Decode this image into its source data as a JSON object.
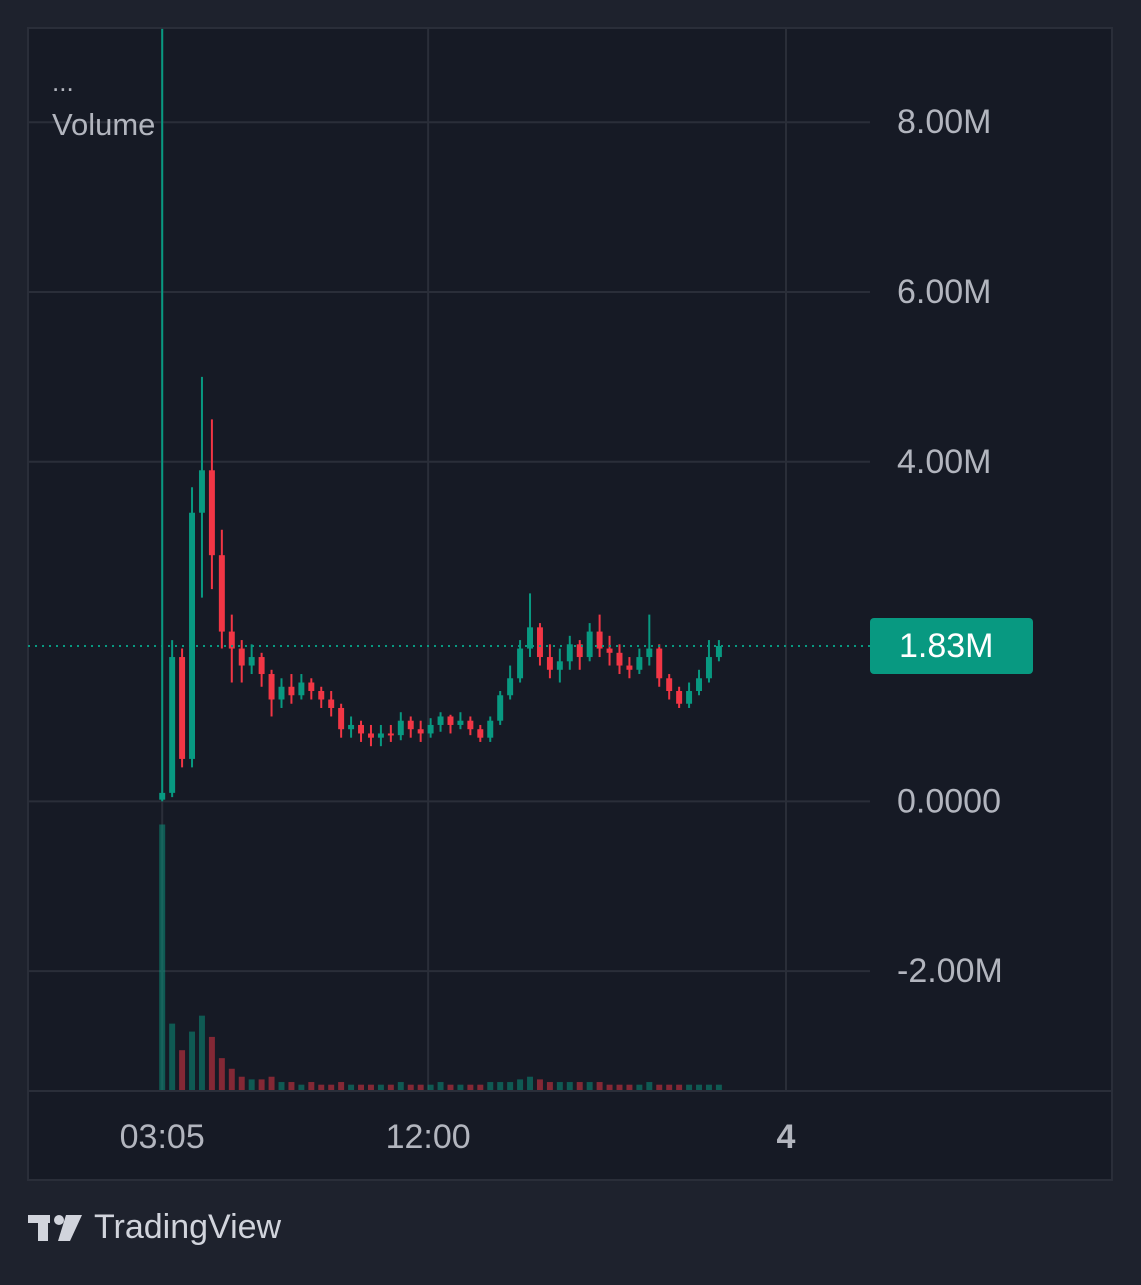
{
  "chart_data": {
    "type": "candlestick",
    "legend_more": "...",
    "legend_title": "Volume",
    "x": [
      185,
      205,
      225,
      245,
      265,
      285,
      305,
      325,
      345,
      365,
      385,
      405,
      425,
      445,
      465,
      485,
      505,
      525,
      545,
      565,
      585,
      605,
      625,
      645,
      665,
      685,
      705,
      725,
      745,
      765,
      785,
      805,
      825,
      845,
      865,
      885,
      905,
      925,
      945,
      965,
      985,
      1005,
      1025,
      1045,
      1065,
      1085,
      1105,
      1125,
      1145,
      1165,
      1185,
      1205,
      1225,
      1245,
      1265,
      1285,
      1305
    ],
    "open": [
      0.02,
      0.1,
      1.7,
      0.5,
      3.4,
      3.9,
      2.9,
      2.0,
      1.8,
      1.6,
      1.7,
      1.5,
      1.2,
      1.35,
      1.25,
      1.4,
      1.3,
      1.2,
      1.1,
      0.85,
      0.9,
      0.8,
      0.75,
      0.8,
      0.78,
      0.95,
      0.85,
      0.8,
      0.9,
      1.0,
      0.9,
      0.95,
      0.85,
      0.75,
      0.95,
      1.25,
      1.45,
      1.8,
      2.05,
      1.7,
      1.55,
      1.65,
      1.85,
      1.7,
      2.0,
      1.8,
      1.75,
      1.6,
      1.55,
      1.7,
      1.8,
      1.45,
      1.3,
      1.15,
      1.3,
      1.45,
      1.7
    ],
    "high": [
      9.1,
      1.9,
      1.8,
      3.7,
      5.0,
      4.5,
      3.2,
      2.2,
      1.9,
      1.85,
      1.75,
      1.55,
      1.45,
      1.5,
      1.5,
      1.45,
      1.35,
      1.3,
      1.15,
      1.0,
      0.95,
      0.9,
      0.9,
      0.9,
      1.05,
      1.0,
      0.95,
      0.98,
      1.05,
      1.02,
      1.05,
      1.0,
      0.9,
      1.0,
      1.3,
      1.6,
      1.9,
      2.45,
      2.1,
      1.85,
      1.8,
      1.95,
      1.9,
      2.1,
      2.2,
      1.95,
      1.85,
      1.7,
      1.8,
      2.2,
      1.85,
      1.5,
      1.35,
      1.4,
      1.55,
      1.9,
      1.9
    ],
    "low": [
      0.0,
      0.05,
      0.4,
      0.4,
      2.4,
      2.5,
      1.8,
      1.4,
      1.4,
      1.5,
      1.35,
      1.0,
      1.1,
      1.15,
      1.2,
      1.2,
      1.1,
      1.0,
      0.75,
      0.75,
      0.7,
      0.65,
      0.65,
      0.7,
      0.72,
      0.75,
      0.7,
      0.75,
      0.82,
      0.8,
      0.85,
      0.78,
      0.7,
      0.7,
      0.9,
      1.2,
      1.4,
      1.7,
      1.6,
      1.45,
      1.4,
      1.55,
      1.55,
      1.65,
      1.7,
      1.6,
      1.5,
      1.45,
      1.5,
      1.6,
      1.35,
      1.2,
      1.1,
      1.1,
      1.25,
      1.4,
      1.65
    ],
    "close": [
      0.1,
      1.7,
      0.5,
      3.4,
      3.9,
      2.9,
      2.0,
      1.8,
      1.6,
      1.7,
      1.5,
      1.2,
      1.35,
      1.25,
      1.4,
      1.3,
      1.2,
      1.1,
      0.85,
      0.9,
      0.8,
      0.75,
      0.8,
      0.78,
      0.95,
      0.85,
      0.8,
      0.9,
      1.0,
      0.9,
      0.95,
      0.85,
      0.75,
      0.95,
      1.25,
      1.45,
      1.8,
      2.05,
      1.7,
      1.55,
      1.65,
      1.85,
      1.7,
      2.0,
      1.8,
      1.75,
      1.6,
      1.55,
      1.7,
      1.8,
      1.45,
      1.3,
      1.15,
      1.3,
      1.45,
      1.7,
      1.83
    ],
    "volume": [
      100,
      25,
      15,
      22,
      28,
      20,
      12,
      8,
      5,
      4,
      4,
      5,
      3,
      3,
      2,
      3,
      2,
      2,
      3,
      2,
      2,
      2,
      2,
      2,
      3,
      2,
      2,
      2,
      3,
      2,
      2,
      2,
      2,
      3,
      3,
      3,
      4,
      5,
      4,
      3,
      3,
      3,
      3,
      3,
      3,
      2,
      2,
      2,
      2,
      3,
      2,
      2,
      2,
      2,
      2,
      2,
      2
    ],
    "xlim": [
      -85,
      1609
    ],
    "xticks": [
      {
        "value": 185,
        "label": "03:05"
      },
      {
        "value": 720,
        "label": "12:00"
      },
      {
        "value": 1440,
        "label": "4"
      }
    ],
    "ylim": [
      -3.4,
      9.11
    ],
    "yticks": [
      {
        "value": -2,
        "label": "-2.00M"
      },
      {
        "value": 0,
        "label": "0.0000"
      },
      {
        "value": 4,
        "label": "4.00M"
      },
      {
        "value": 6,
        "label": "6.00M"
      },
      {
        "value": 8,
        "label": "8.00M"
      }
    ],
    "last_price": {
      "value": 1.83,
      "label": "1.83M"
    },
    "up_color": "#089981",
    "down_color": "#f23645",
    "grid": true
  },
  "brand": "TradingView"
}
